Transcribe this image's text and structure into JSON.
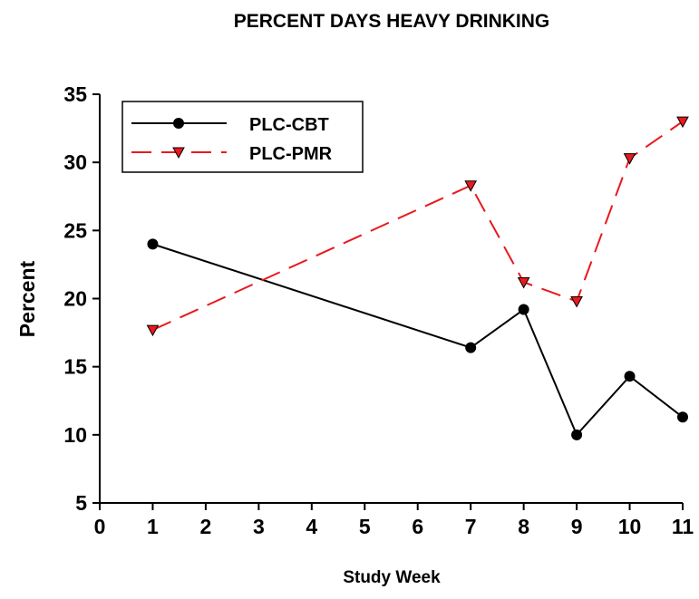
{
  "chart_data": {
    "type": "line",
    "title": "PERCENT DAYS HEAVY DRINKING",
    "x_label": "Study Week",
    "y_label": "Percent",
    "x": [
      1,
      7,
      8,
      9,
      10,
      11
    ],
    "series": [
      {
        "name": "PLC-CBT",
        "color": "#000000",
        "marker": "circle",
        "dash": "solid",
        "values": [
          24,
          16.4,
          19.2,
          10,
          14.3,
          11.3
        ]
      },
      {
        "name": "PLC-PMR",
        "color": "#e8191e",
        "marker": "triangle-down",
        "dash": "dashed",
        "values": [
          17.7,
          28.3,
          21.2,
          19.8,
          30.3,
          33
        ]
      }
    ],
    "xlim": [
      0,
      11
    ],
    "xticks": [
      0,
      1,
      2,
      3,
      4,
      5,
      6,
      7,
      8,
      9,
      10,
      11
    ],
    "ylim": [
      5,
      35
    ],
    "yticks": [
      5,
      10,
      15,
      20,
      25,
      30,
      35
    ],
    "legend": "upper-left"
  }
}
